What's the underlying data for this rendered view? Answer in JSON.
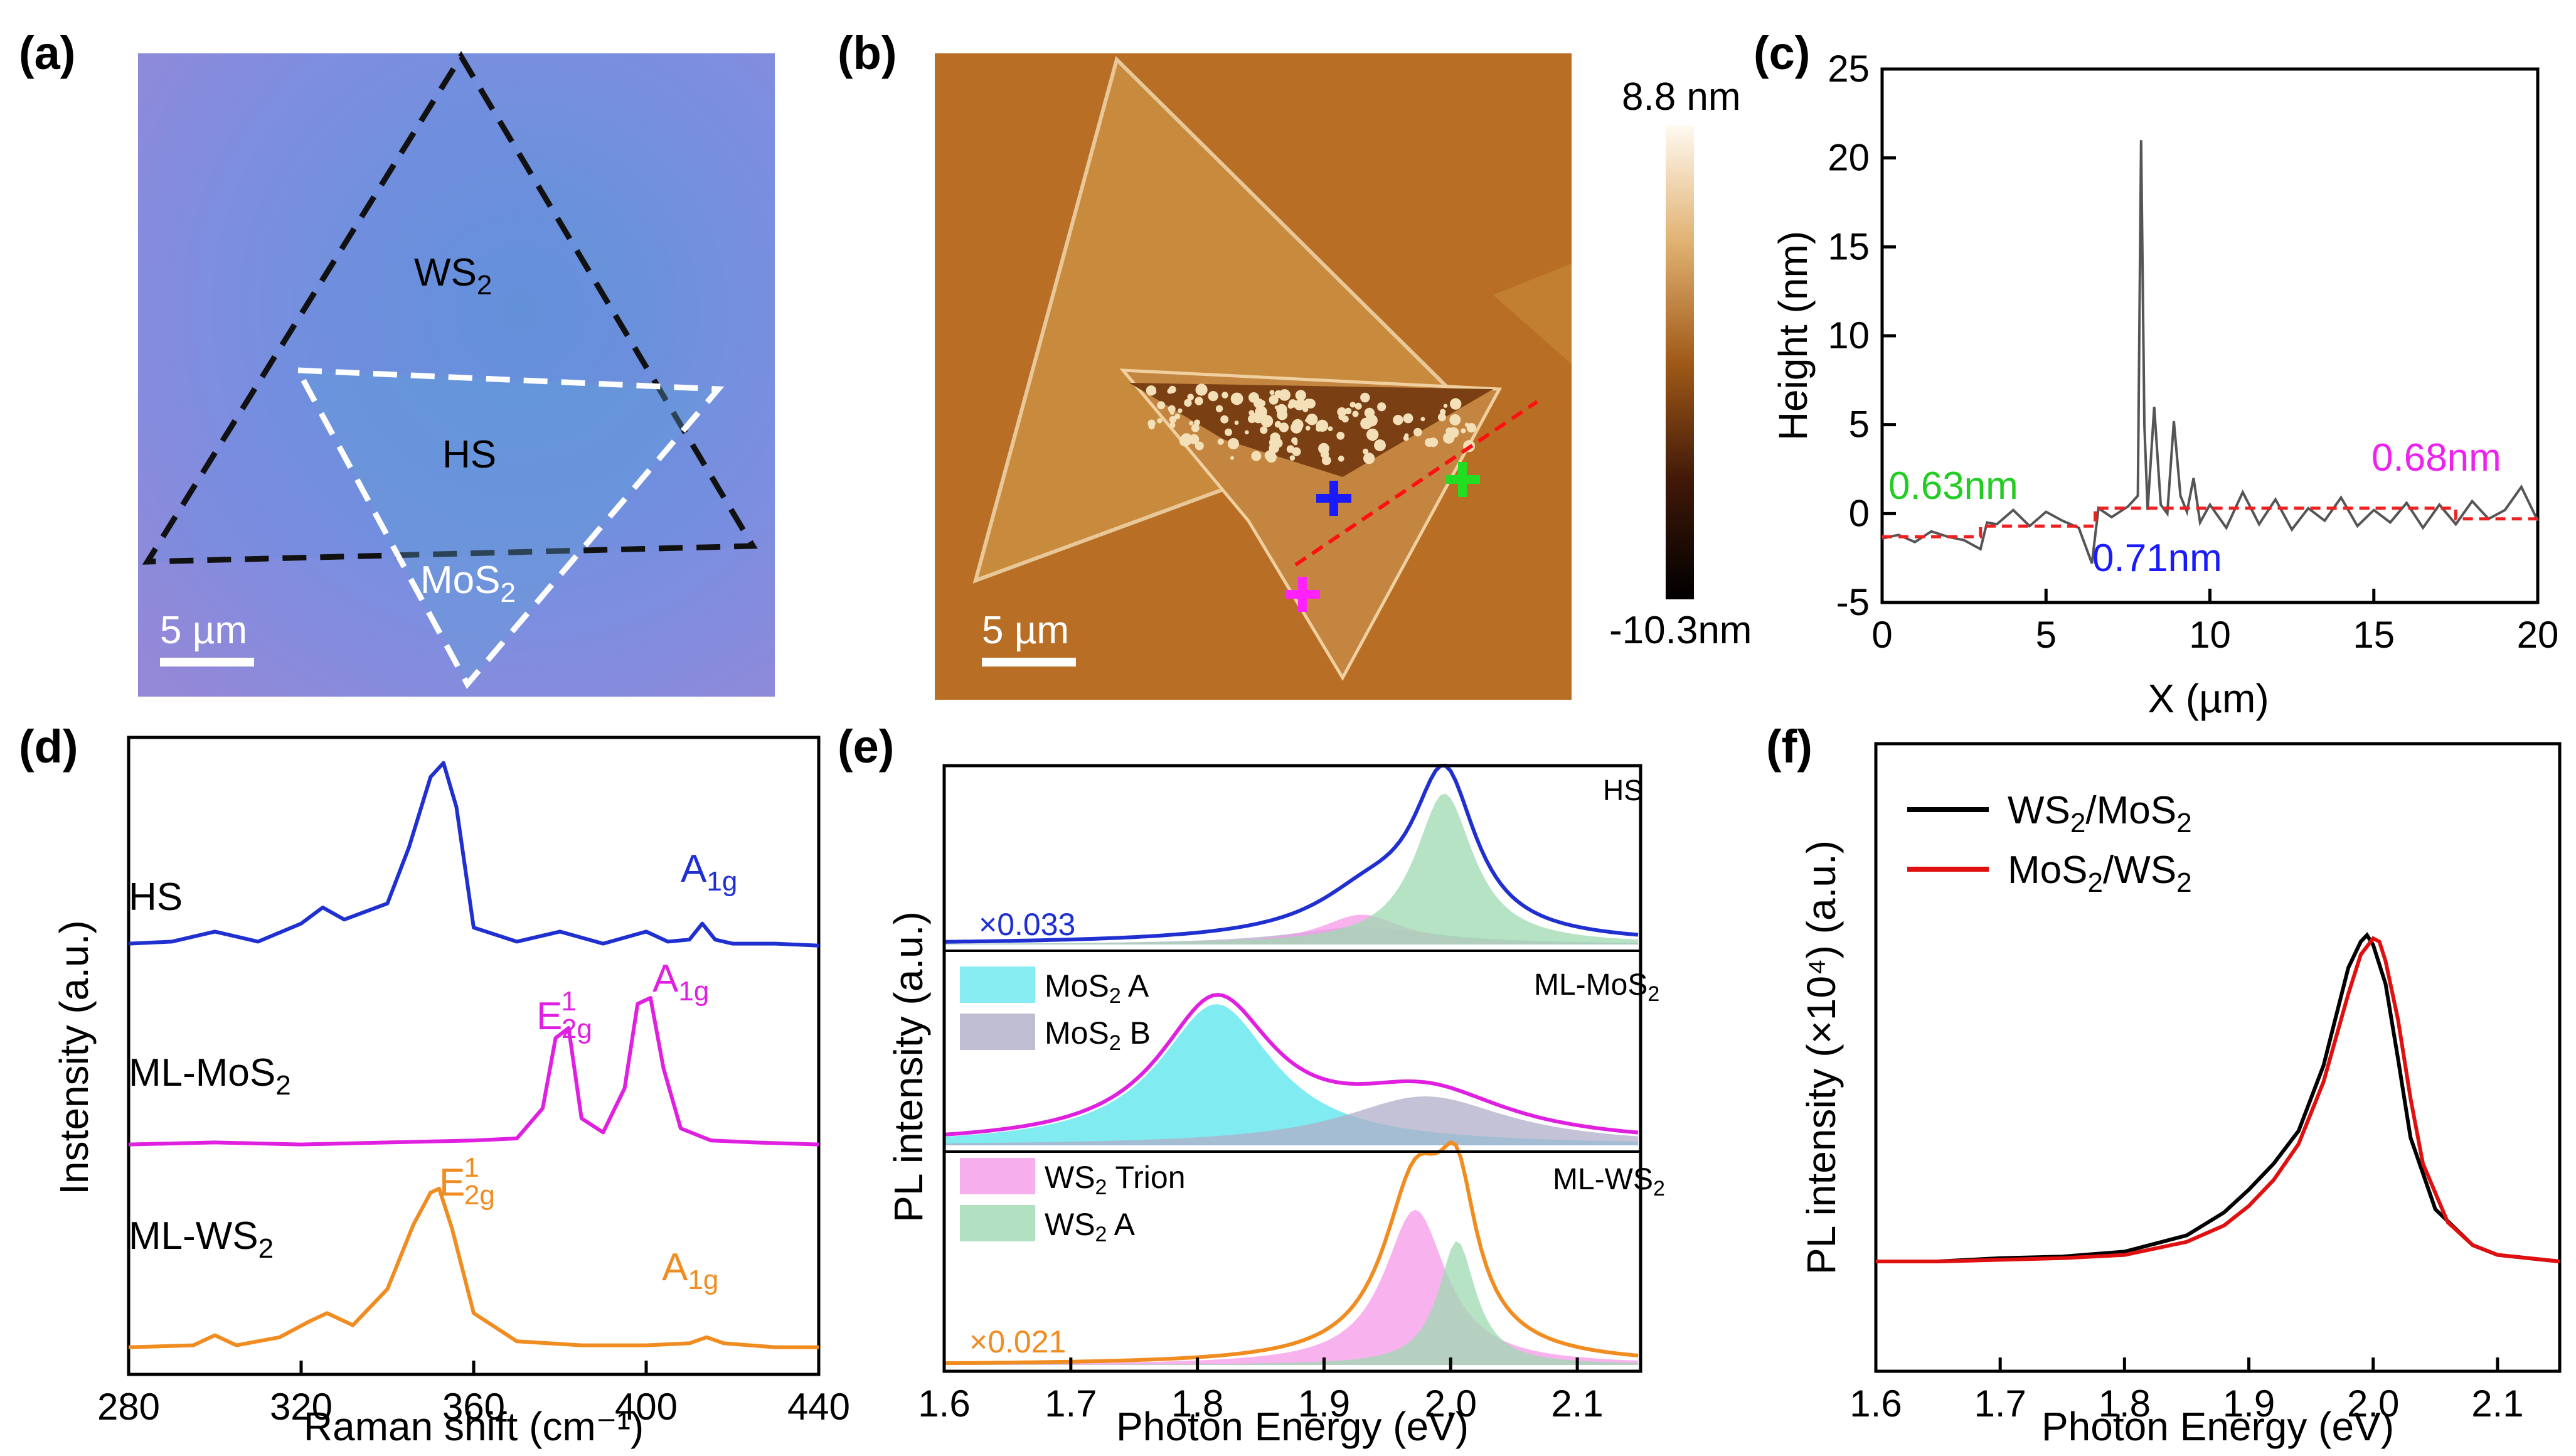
{
  "panels": {
    "a": {
      "label": "(a)",
      "regions": {
        "ws2": "WS",
        "ws2_sub": "2",
        "hs": "HS",
        "mos2": "MoS",
        "mos2_sub": "2"
      },
      "scale_bar": "5 µm",
      "colors": {
        "substrate": "#8a8ee0",
        "ws2_outline": "#111111",
        "mos2_outline": "#ffffff"
      }
    },
    "b": {
      "label": "(b)",
      "scale_bar": "5 µm",
      "colorbar_max": "8.8 nm",
      "colorbar_min": "-10.3nm",
      "markers": [
        {
          "name": "hs-marker",
          "color": "#1a1aff"
        },
        {
          "name": "ws2-marker",
          "color": "#22dd22"
        },
        {
          "name": "mos2-marker",
          "color": "#ff22ff"
        }
      ]
    },
    "c": {
      "label": "(c)",
      "annotations": {
        "left": "0.63nm",
        "middle": "0.71nm",
        "right": "0.68nm"
      },
      "annotation_colors": {
        "left": "#22cc22",
        "middle": "#1a1aff",
        "right": "#ee22ee"
      }
    },
    "d": {
      "label": "(d)",
      "series_labels": {
        "hs": "HS",
        "mos2": "ML-MoS",
        "mos2_sub": "2",
        "ws2": "ML-WS",
        "ws2_sub": "2"
      },
      "peak_labels": {
        "a1g": "A",
        "a1g_sub": "1g",
        "e2g": "E",
        "e2g_sup": "1",
        "e2g_sub": "2g"
      }
    },
    "e": {
      "label": "(e)",
      "subpanels": {
        "hs": {
          "tag": "HS",
          "scale": "×0.033"
        },
        "mos2": {
          "tag": "ML-MoS",
          "tag_sub": "2",
          "legend": [
            {
              "text": "MoS",
              "sub": "2",
              "after": " A",
              "color": "#55e6ee"
            },
            {
              "text": "MoS",
              "sub": "2",
              "after": " B",
              "color": "#b0aec8"
            }
          ]
        },
        "ws2": {
          "tag": "ML-WS",
          "tag_sub": "2",
          "scale": "×0.021",
          "legend": [
            {
              "text": "WS",
              "sub": "2",
              "after": " Trion",
              "color": "#f59ae8"
            },
            {
              "text": "WS",
              "sub": "2",
              "after": " A",
              "color": "#9fd9b2"
            }
          ]
        }
      }
    },
    "f": {
      "label": "(f)",
      "legend": [
        {
          "text": "WS",
          "sub1": "2",
          "mid": "/MoS",
          "sub2": "2",
          "color": "#000000"
        },
        {
          "text": "MoS",
          "sub1": "2",
          "mid": "/WS",
          "sub2": "2",
          "color": "#e01010"
        }
      ]
    }
  },
  "chart_data": [
    {
      "id": "c",
      "type": "line",
      "title": "",
      "xlabel": "X (µm)",
      "ylabel": "Height (nm)",
      "xlim": [
        0,
        20
      ],
      "ylim": [
        -5,
        25
      ],
      "xticks": [
        0,
        5,
        10,
        15,
        20
      ],
      "yticks": [
        -5,
        0,
        5,
        10,
        15,
        20,
        25
      ],
      "series": [
        {
          "name": "height profile",
          "color": "#555555",
          "x": [
            0,
            0.5,
            1,
            1.5,
            2,
            2.5,
            3,
            3.2,
            3.5,
            4,
            4.5,
            5,
            5.5,
            6,
            6.4,
            6.6,
            7,
            7.5,
            7.8,
            7.9,
            8,
            8.1,
            8.3,
            8.5,
            8.7,
            8.9,
            9.1,
            9.3,
            9.5,
            9.7,
            10,
            10.5,
            11,
            11.5,
            12,
            12.5,
            13,
            13.5,
            14,
            14.5,
            15,
            15.5,
            16,
            16.5,
            17,
            17.5,
            18,
            18.5,
            19,
            19.5,
            20
          ],
          "y": [
            -1.4,
            -1.2,
            -1.6,
            -1.0,
            -1.3,
            -1.5,
            -2.0,
            -0.5,
            -0.6,
            0.2,
            -0.7,
            0.1,
            -0.4,
            -0.8,
            -2.8,
            0.3,
            -0.2,
            0.4,
            1.0,
            21.0,
            5.0,
            0.2,
            6.0,
            0.5,
            0.0,
            5.2,
            1.0,
            0.1,
            2.0,
            -0.5,
            0.5,
            -0.8,
            1.2,
            -0.6,
            0.8,
            -0.9,
            0.3,
            -0.4,
            0.9,
            -0.7,
            0.2,
            -0.5,
            0.6,
            -0.8,
            0.5,
            -0.6,
            0.7,
            -0.3,
            0.2,
            1.5,
            -0.4
          ]
        },
        {
          "name": "step fit",
          "color": "#ee2020",
          "dashed": true,
          "x": [
            0,
            3,
            3,
            6.5,
            6.5,
            17.5,
            17.5,
            20
          ],
          "y": [
            -1.3,
            -1.3,
            -0.7,
            -0.7,
            0.3,
            0.3,
            -0.3,
            -0.3
          ]
        }
      ]
    },
    {
      "id": "d",
      "type": "line",
      "title": "",
      "xlabel": "Raman shift (cm⁻¹)",
      "ylabel": "Instensity (a.u.)",
      "xlim": [
        280,
        440
      ],
      "xticks": [
        280,
        320,
        360,
        400,
        440
      ],
      "series": [
        {
          "name": "HS",
          "color": "#2030d0",
          "offset": 2.0,
          "x": [
            280,
            290,
            300,
            310,
            320,
            325,
            330,
            340,
            345,
            350,
            353,
            356,
            360,
            370,
            380,
            390,
            400,
            405,
            410,
            413,
            416,
            420,
            430,
            440
          ],
          "y": [
            0.02,
            0.03,
            0.08,
            0.03,
            0.12,
            0.2,
            0.14,
            0.22,
            0.5,
            0.85,
            0.92,
            0.7,
            0.1,
            0.03,
            0.08,
            0.02,
            0.08,
            0.03,
            0.04,
            0.12,
            0.04,
            0.02,
            0.02,
            0.01
          ]
        },
        {
          "name": "ML-MoS2",
          "color": "#e020e0",
          "offset": 1.0,
          "x": [
            280,
            300,
            320,
            340,
            360,
            370,
            376,
            379,
            382,
            385,
            390,
            395,
            398,
            401,
            404,
            408,
            415,
            425,
            440
          ],
          "y": [
            0.02,
            0.03,
            0.02,
            0.03,
            0.04,
            0.05,
            0.2,
            0.55,
            0.6,
            0.15,
            0.08,
            0.3,
            0.72,
            0.75,
            0.4,
            0.1,
            0.04,
            0.03,
            0.02
          ]
        },
        {
          "name": "ML-WS2",
          "color": "#f08c20",
          "offset": 0.0,
          "x": [
            280,
            295,
            300,
            305,
            315,
            322,
            326,
            332,
            340,
            346,
            350,
            352,
            355,
            360,
            370,
            385,
            400,
            410,
            414,
            418,
            430,
            440
          ],
          "y": [
            0.01,
            0.02,
            0.07,
            0.02,
            0.06,
            0.14,
            0.18,
            0.12,
            0.3,
            0.62,
            0.78,
            0.8,
            0.6,
            0.18,
            0.04,
            0.02,
            0.02,
            0.03,
            0.06,
            0.03,
            0.01,
            0.01
          ]
        }
      ]
    },
    {
      "id": "e",
      "type": "area",
      "title": "",
      "xlabel": "Photon Energy (eV)",
      "ylabel": "PL intensity (a.u.)",
      "xlim": [
        1.6,
        2.15
      ],
      "xticks": [
        1.6,
        1.7,
        1.8,
        1.9,
        2.0,
        2.1
      ],
      "series": [
        {
          "name": "HS total",
          "panel": "hs",
          "color": "#2030d0",
          "peaks": [
            [
              1.995,
              0.9,
              0.03
            ],
            [
              1.935,
              0.2,
              0.05
            ],
            [
              1.93,
              0.05,
              0.12
            ]
          ]
        },
        {
          "name": "HS MoS2 B",
          "panel": "hs",
          "fill": "#b0aec8",
          "peaks": [
            [
              1.93,
              0.1,
              0.07
            ]
          ]
        },
        {
          "name": "HS WS2 Trion",
          "panel": "hs",
          "fill": "#f59ae8",
          "peaks": [
            [
              1.93,
              0.17,
              0.04
            ]
          ]
        },
        {
          "name": "HS WS2 A",
          "panel": "hs",
          "fill": "#9fd9b2",
          "peaks": [
            [
              1.995,
              0.86,
              0.028
            ]
          ]
        },
        {
          "name": "MoS2 A",
          "panel": "mos2",
          "fill": "#55e6ee",
          "peaks": [
            [
              1.815,
              0.75,
              0.055
            ]
          ]
        },
        {
          "name": "MoS2 B",
          "panel": "mos2",
          "fill": "#b0aec8",
          "peaks": [
            [
              1.98,
              0.26,
              0.08
            ]
          ]
        },
        {
          "name": "ML-MoS2 total",
          "panel": "mos2",
          "color": "#e020e0",
          "peaks": [
            [
              1.815,
              0.75,
              0.055
            ],
            [
              1.98,
              0.26,
              0.08
            ]
          ]
        },
        {
          "name": "WS2 Trion",
          "panel": "ws2",
          "fill": "#f59ae8",
          "peaks": [
            [
              1.972,
              0.75,
              0.03
            ]
          ]
        },
        {
          "name": "WS2 A",
          "panel": "ws2",
          "fill": "#9fd9b2",
          "peaks": [
            [
              2.005,
              0.6,
              0.018
            ]
          ]
        },
        {
          "name": "ML-WS2 total",
          "panel": "ws2",
          "color": "#f08c20",
          "peaks": [
            [
              1.972,
              0.75,
              0.03
            ],
            [
              2.005,
              0.6,
              0.018
            ],
            [
              1.99,
              0.12,
              0.06
            ]
          ]
        }
      ]
    },
    {
      "id": "f",
      "type": "line",
      "title": "",
      "xlabel": "Photon Energy (eV)",
      "ylabel": "PL intensity (×10⁴) (a.u.)",
      "xlim": [
        1.6,
        2.15
      ],
      "xticks": [
        1.6,
        1.7,
        1.8,
        1.9,
        2.0,
        2.1
      ],
      "series": [
        {
          "name": "WS2/MoS2",
          "color": "#000000",
          "x": [
            1.6,
            1.65,
            1.7,
            1.75,
            1.8,
            1.85,
            1.88,
            1.9,
            1.92,
            1.94,
            1.96,
            1.97,
            1.98,
            1.99,
            1.995,
            2.0,
            2.01,
            2.02,
            2.03,
            2.05,
            2.08,
            2.1,
            2.15
          ],
          "y": [
            0.0,
            0.0,
            0.01,
            0.015,
            0.03,
            0.08,
            0.15,
            0.22,
            0.3,
            0.4,
            0.6,
            0.75,
            0.9,
            0.98,
            1.0,
            0.97,
            0.85,
            0.62,
            0.38,
            0.16,
            0.05,
            0.02,
            0.0
          ]
        },
        {
          "name": "MoS2/WS2",
          "color": "#e01010",
          "x": [
            1.6,
            1.65,
            1.7,
            1.75,
            1.8,
            1.85,
            1.88,
            1.9,
            1.92,
            1.94,
            1.96,
            1.98,
            1.99,
            2.0,
            2.005,
            2.01,
            2.02,
            2.03,
            2.04,
            2.06,
            2.08,
            2.1,
            2.15
          ],
          "y": [
            0.0,
            0.0,
            0.005,
            0.01,
            0.02,
            0.06,
            0.11,
            0.17,
            0.25,
            0.36,
            0.55,
            0.82,
            0.94,
            0.99,
            0.98,
            0.92,
            0.74,
            0.5,
            0.3,
            0.12,
            0.05,
            0.02,
            0.0
          ]
        }
      ]
    }
  ]
}
